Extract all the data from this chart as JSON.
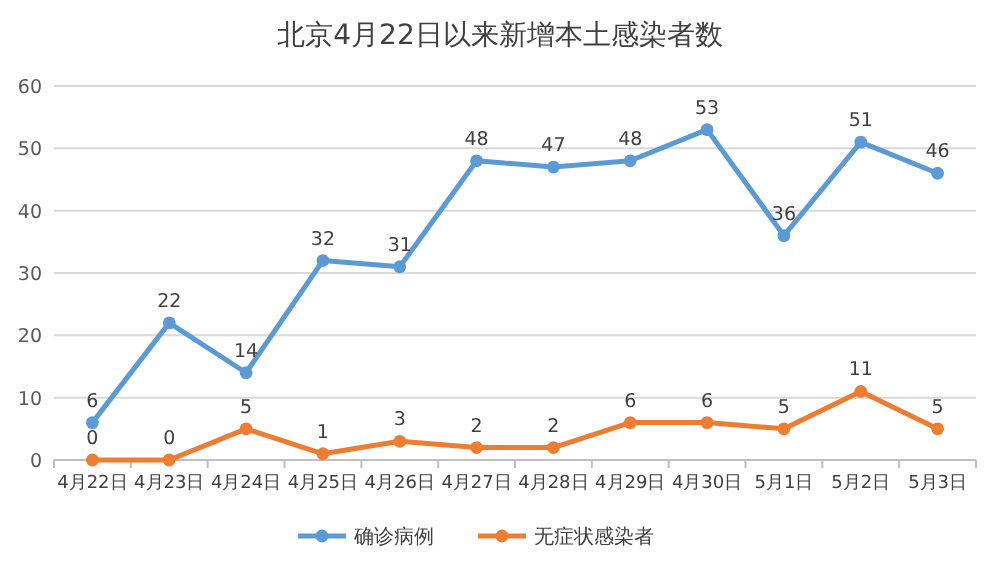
{
  "chart_data": {
    "type": "line",
    "title": "北京4月22日以来新增本土感染者数",
    "categories": [
      "4月22日",
      "4月23日",
      "4月24日",
      "4月25日",
      "4月26日",
      "4月27日",
      "4月28日",
      "4月29日",
      "4月30日",
      "5月1日",
      "5月2日",
      "5月3日"
    ],
    "series": [
      {
        "name": "确诊病例",
        "color": "#5b9bd5",
        "values": [
          6,
          22,
          14,
          32,
          31,
          48,
          47,
          48,
          53,
          36,
          51,
          46
        ]
      },
      {
        "name": "无症状感染者",
        "color": "#ed7d31",
        "values": [
          0,
          0,
          5,
          1,
          3,
          2,
          2,
          6,
          6,
          5,
          11,
          5
        ]
      }
    ],
    "ylim": [
      0,
      60
    ],
    "yticks": [
      0,
      10,
      20,
      30,
      40,
      50,
      60
    ],
    "grid": "y",
    "legend": "bottom",
    "marker": "circle",
    "data_labels": true
  }
}
